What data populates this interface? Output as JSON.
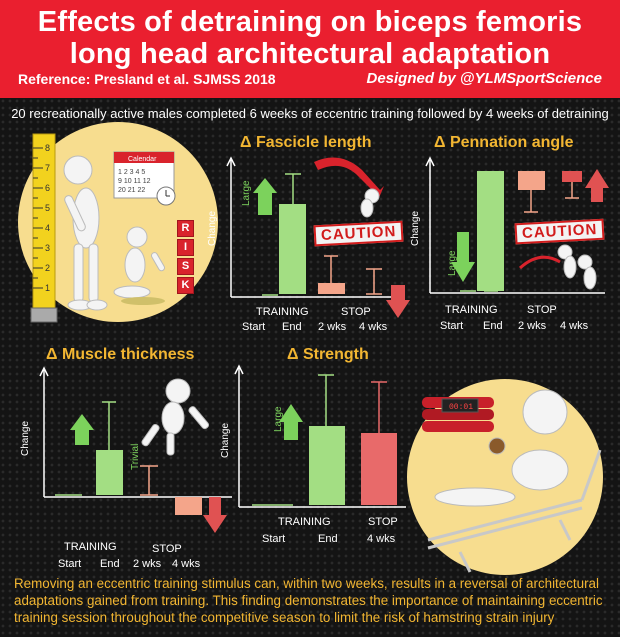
{
  "header": {
    "title_line1": "Effects of detraining on biceps femoris",
    "title_line2": "long head architectural adaptation",
    "reference": "Reference: Presland et al. SJMSS 2018",
    "credit": "Designed by @YLMSportScience"
  },
  "subtitle": "20 recreationally active males completed 6 weeks of eccentric training followed by 4 weeks of detraining",
  "illustration": {
    "calendar_label": "Calendar",
    "risk_letters": [
      "R",
      "I",
      "S",
      "K"
    ],
    "caution_text": "CAUTION",
    "bomb_display": "00:01"
  },
  "panels": {
    "fascicle": {
      "title": "Δ Fascicle length",
      "ylabel": "Change",
      "effect_label": "Large",
      "training_label": "TRAINING",
      "stop_label": "STOP",
      "ticks": [
        "Start",
        "End",
        "2 wks",
        "4 wks"
      ]
    },
    "pennation": {
      "title": "Δ Pennation angle",
      "ylabel": "Change",
      "effect_label": "Large",
      "training_label": "TRAINING",
      "stop_label": "STOP",
      "ticks": [
        "Start",
        "End",
        "2 wks",
        "4 wks"
      ]
    },
    "thickness": {
      "title": "Δ Muscle thickness",
      "ylabel": "Change",
      "effect_label": "Trivial",
      "training_label": "TRAINING",
      "stop_label": "STOP",
      "ticks": [
        "Start",
        "End",
        "2 wks",
        "4 wks"
      ]
    },
    "strength": {
      "title": "Δ Strength",
      "ylabel": "Change",
      "effect_label": "Large",
      "training_label": "TRAINING",
      "stop_label": "STOP",
      "ticks": [
        "Start",
        "End",
        "4 wks"
      ]
    }
  },
  "conclusion": "Removing an eccentric training stimulus can, within two weeks, results in a reversal of architectural adaptations gained from training. This finding demonstrates the importance of maintaining eccentric training session throughout the competitive season to limit the risk of hamstring strain injury",
  "colors": {
    "banner": "#ea1f2f",
    "accent": "#f2b632",
    "increase": "#a3de83",
    "decrease": "#f4a58a",
    "arrow_up": "#7cd25c",
    "arrow_down": "#e05252"
  }
}
